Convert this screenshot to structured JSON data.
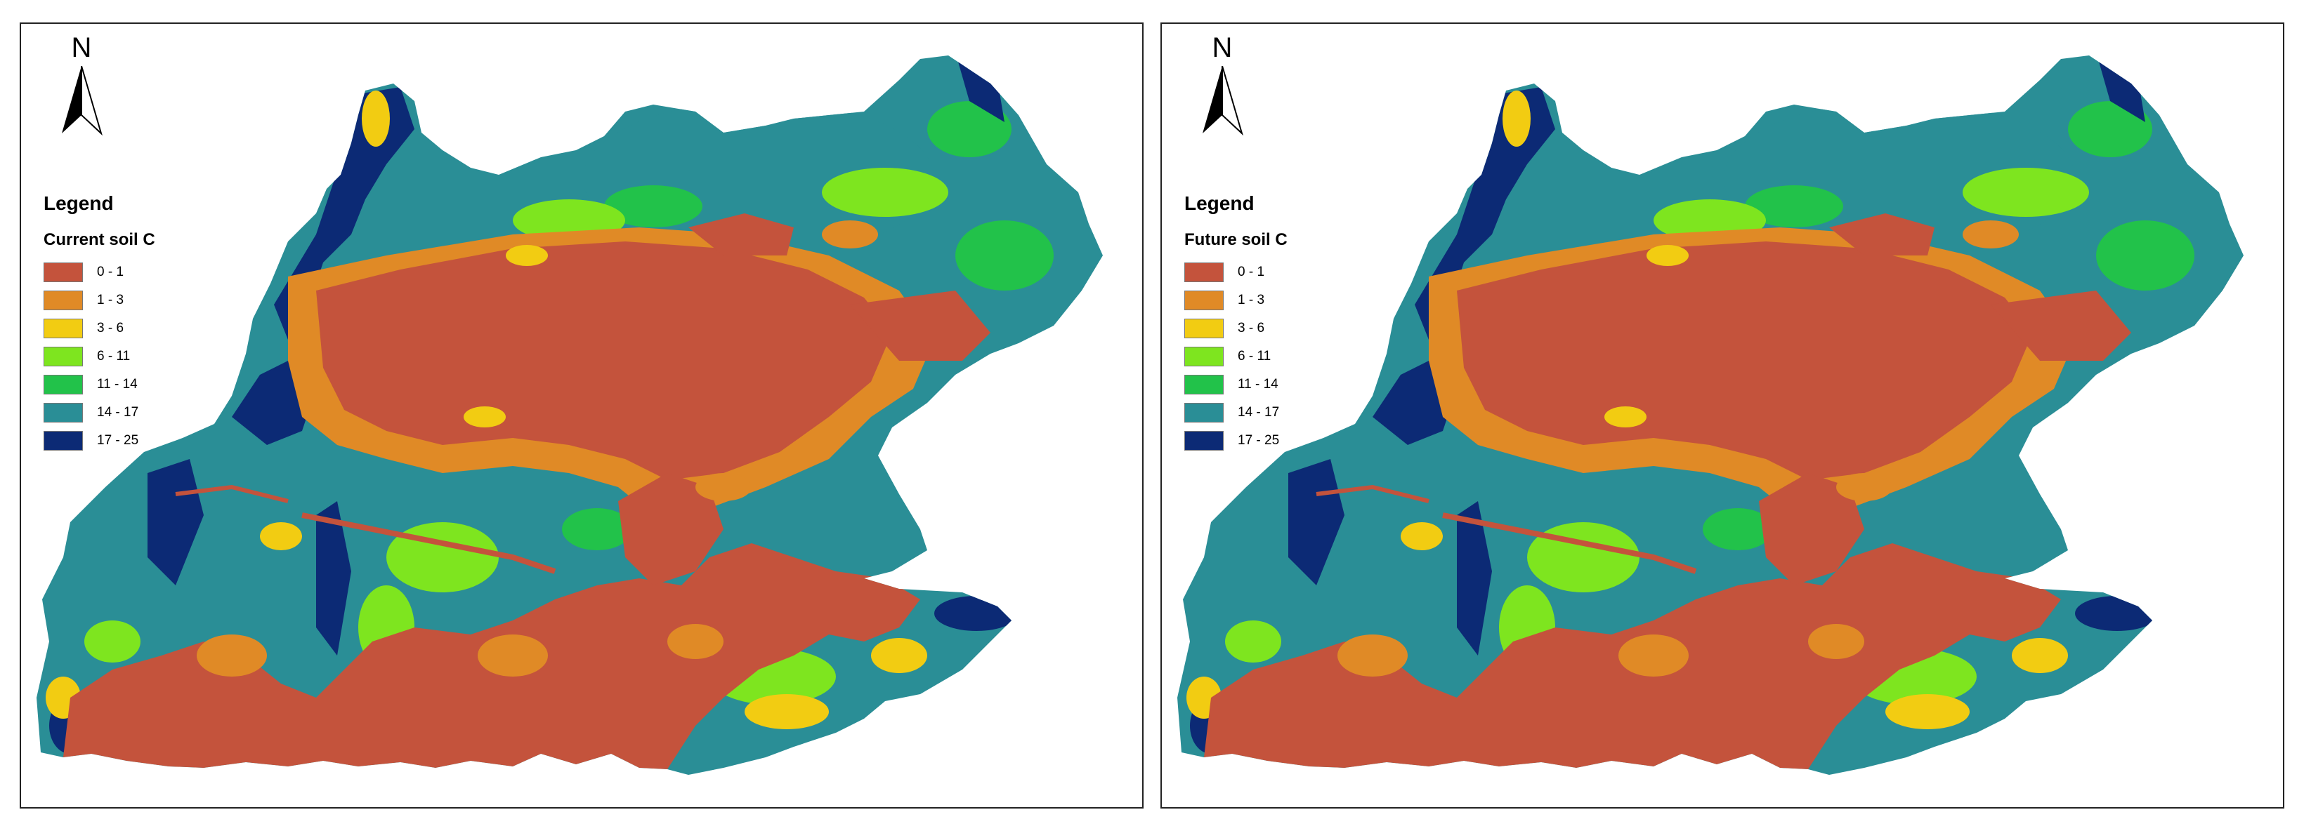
{
  "north_label": "N",
  "colors": {
    "c0": "#c4533c",
    "c1": "#e08a26",
    "c2": "#f2cc12",
    "c3": "#7ee51f",
    "c4": "#22c24a",
    "c5": "#2a8e96",
    "c6": "#0c2a75"
  },
  "panels": [
    {
      "legend_title": "Legend",
      "legend_subtitle": "Current soil C",
      "classes": [
        {
          "label": "0 - 1",
          "color": "#c4533c"
        },
        {
          "label": "1 - 3",
          "color": "#e08a26"
        },
        {
          "label": "3 - 6",
          "color": "#f2cc12"
        },
        {
          "label": "6 - 11",
          "color": "#7ee51f"
        },
        {
          "label": "11 - 14",
          "color": "#22c24a"
        },
        {
          "label": "14 - 17",
          "color": "#2a8e96"
        },
        {
          "label": "17 - 25",
          "color": "#0c2a75"
        }
      ]
    },
    {
      "legend_title": "Legend",
      "legend_subtitle": "Future soil C",
      "classes": [
        {
          "label": "0 - 1",
          "color": "#c4533c"
        },
        {
          "label": "1 - 3",
          "color": "#e08a26"
        },
        {
          "label": "3 - 6",
          "color": "#f2cc12"
        },
        {
          "label": "6 - 11",
          "color": "#7ee51f"
        },
        {
          "label": "11 - 14",
          "color": "#22c24a"
        },
        {
          "label": "14 - 17",
          "color": "#2a8e96"
        },
        {
          "label": "17 - 25",
          "color": "#0c2a75"
        }
      ]
    }
  ]
}
